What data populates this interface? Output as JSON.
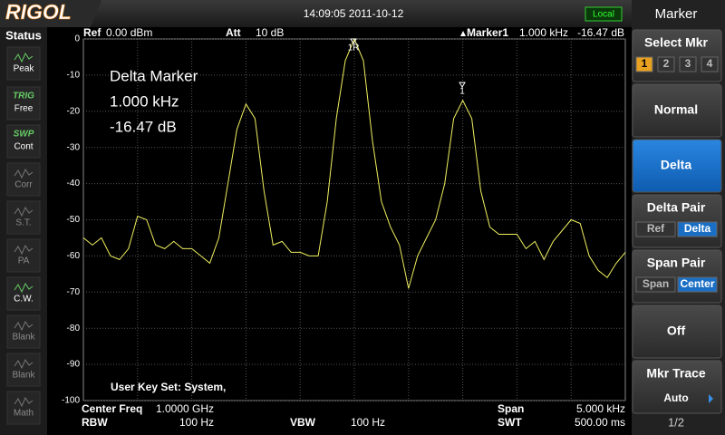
{
  "header": {
    "logo": "RIGOL",
    "datetime": "14:09:05 2011-10-12",
    "mode": "Local"
  },
  "status": {
    "title": "Status",
    "items": [
      {
        "label": "Peak",
        "active": true
      },
      {
        "tag": "TRIG",
        "label": "Free",
        "active": true
      },
      {
        "tag": "SWP",
        "label": "Cont",
        "active": true
      },
      {
        "label": "Corr",
        "active": false
      },
      {
        "label": "S.T.",
        "active": false
      },
      {
        "label": "PA",
        "active": false
      },
      {
        "label": "C.W.",
        "active": true
      },
      {
        "label": "Blank",
        "active": false
      },
      {
        "label": "Blank",
        "active": false
      },
      {
        "label": "Math",
        "active": false
      }
    ]
  },
  "info": {
    "ref_label": "Ref",
    "ref_value": "0.00 dBm",
    "att_label": "Att",
    "att_value": "10 dB",
    "marker_label": "Marker1",
    "marker_freq": "1.000 kHz",
    "marker_level": "-16.47 dB",
    "center_label": "Center Freq",
    "center_value": "1.0000 GHz",
    "rbw_label": "RBW",
    "rbw_value": "100 Hz",
    "vbw_label": "VBW",
    "vbw_value": "100 Hz",
    "span_label": "Span",
    "span_value": "5.000 kHz",
    "swt_label": "SWT",
    "swt_value": "500.00 ms"
  },
  "chart_data": {
    "type": "line",
    "annotations": [
      "Delta Marker",
      "1.000 kHz",
      "-16.47 dB"
    ],
    "footnote": "User Key Set: System,",
    "marker_labels": [
      "1R",
      "1"
    ],
    "color": "#f0f060",
    "grid": true,
    "ylim": [
      -100,
      0
    ],
    "yticks": [
      0,
      -10,
      -20,
      -30,
      -40,
      -50,
      -60,
      -70,
      -80,
      -90,
      -100
    ],
    "values": [
      -55,
      -57,
      -55,
      -60,
      -61,
      -58,
      -49,
      -50,
      -57,
      -58,
      -56,
      -58,
      -58,
      -60,
      -62,
      -55,
      -40,
      -25,
      -18,
      -22,
      -42,
      -57,
      -56,
      -59,
      -59,
      -60,
      -60,
      -45,
      -22,
      -6,
      0,
      -6,
      -28,
      -45,
      -52,
      -57,
      -69,
      -60,
      -55,
      -50,
      -40,
      -22,
      -17,
      -22,
      -42,
      -52,
      -54,
      -54,
      -54,
      -58,
      -56,
      -61,
      -56,
      -53,
      -50,
      -51,
      -60,
      -64,
      -66,
      -62,
      -59
    ]
  },
  "menu": {
    "title": "Marker",
    "items": [
      {
        "title": "Select Mkr",
        "options": [
          "1",
          "2",
          "3",
          "4"
        ]
      },
      {
        "title": "Normal"
      },
      {
        "title": "Delta"
      },
      {
        "title": "Delta Pair",
        "options": [
          "Ref",
          "Delta"
        ]
      },
      {
        "title": "Span Pair",
        "options": [
          "Span",
          "Center"
        ]
      },
      {
        "title": "Off"
      },
      {
        "title": "Mkr Trace",
        "sub": "Auto"
      }
    ],
    "page": "1/2"
  }
}
